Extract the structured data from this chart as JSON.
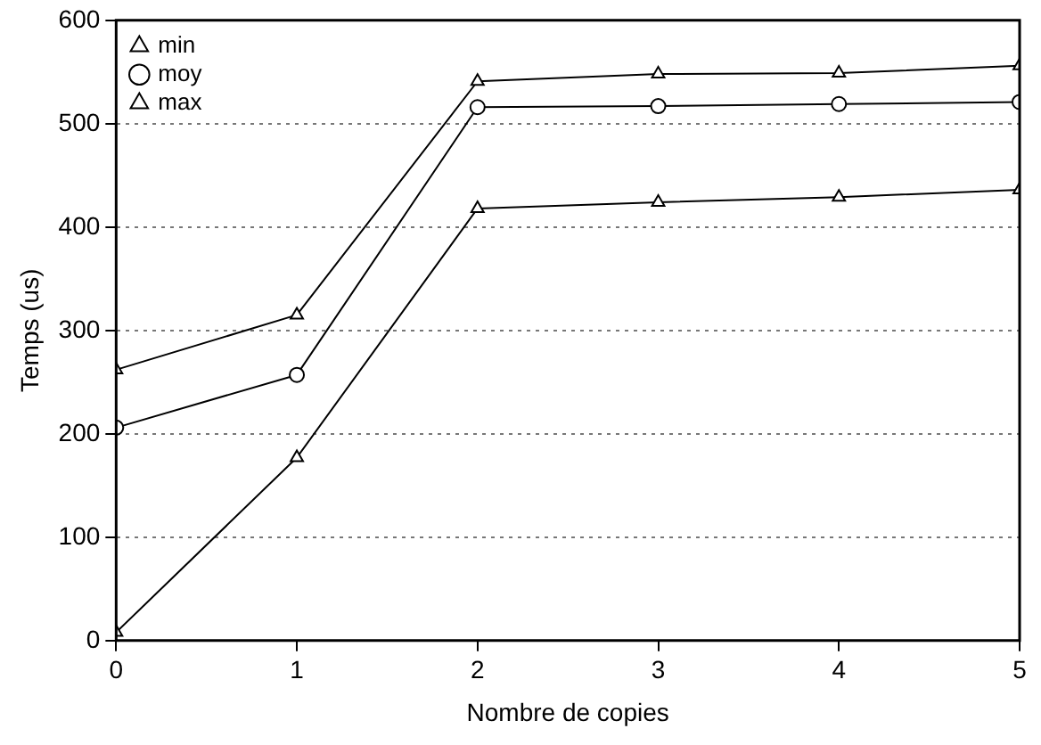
{
  "chart_data": {
    "type": "line",
    "xlabel": "Nombre de copies",
    "ylabel": "Temps (us)",
    "x": [
      0,
      1,
      2,
      3,
      4,
      5
    ],
    "series": [
      {
        "name": "min",
        "color": "#000000",
        "marker": "triangle",
        "values": [
          8,
          177,
          418,
          424,
          429,
          436
        ]
      },
      {
        "name": "moy",
        "color": "#000000",
        "marker": "circle",
        "values": [
          206,
          257,
          516,
          517,
          519,
          521
        ]
      },
      {
        "name": "max",
        "color": "#000000",
        "marker": "triangle",
        "values": [
          262,
          315,
          541,
          548,
          549,
          556
        ]
      }
    ],
    "xlim": [
      0,
      5
    ],
    "xticks": [
      0,
      1,
      2,
      3,
      4,
      5
    ],
    "ylim": [
      0,
      600
    ],
    "yticks": [
      0,
      100,
      200,
      300,
      400,
      500,
      600
    ],
    "grid": "y",
    "legend": "top left",
    "line_style": "solid"
  }
}
